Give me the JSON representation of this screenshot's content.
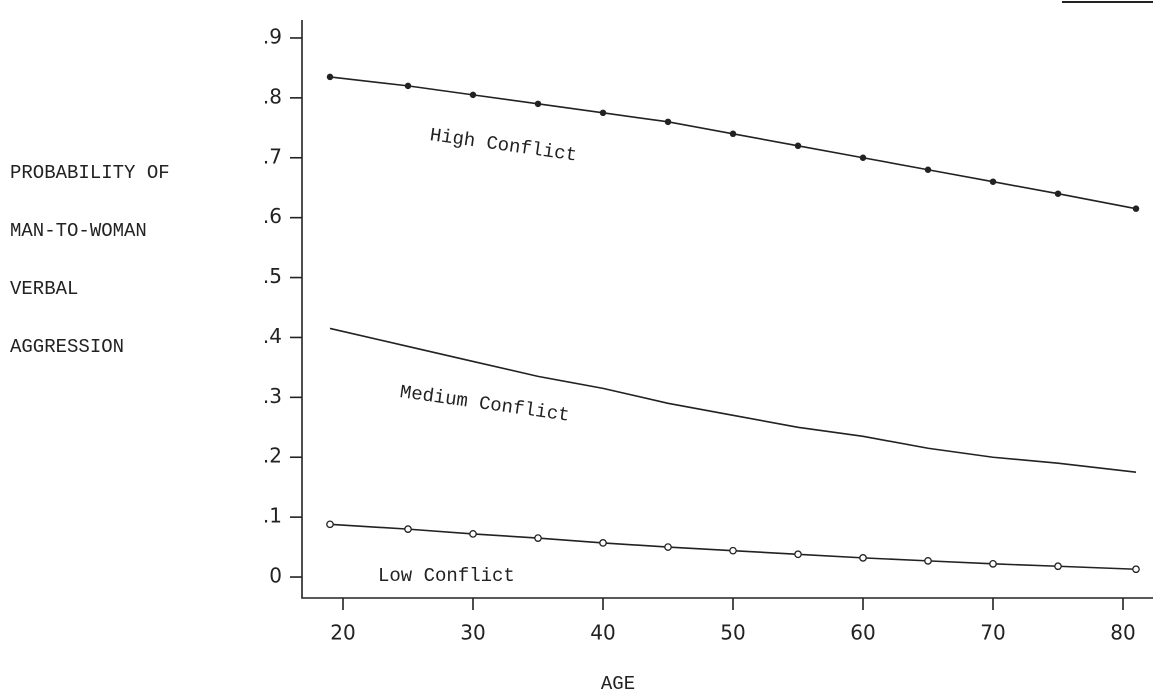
{
  "chart_data": {
    "type": "line",
    "x_label": "AGE",
    "y_label": [
      "PROBABILITY OF",
      "MAN-TO-WOMAN",
      "VERBAL",
      "AGGRESSION"
    ],
    "x": [
      19,
      25,
      30,
      35,
      40,
      45,
      50,
      55,
      60,
      65,
      70,
      75,
      81
    ],
    "series": [
      {
        "name": "High Conflict",
        "color": "#222222",
        "marker": "dot",
        "values": [
          0.835,
          0.82,
          0.805,
          0.79,
          0.775,
          0.76,
          0.74,
          0.72,
          0.7,
          0.68,
          0.66,
          0.64,
          0.615
        ]
      },
      {
        "name": "Medium Conflict",
        "color": "#222222",
        "marker": "none",
        "values": [
          0.415,
          0.385,
          0.36,
          0.335,
          0.315,
          0.29,
          0.27,
          0.25,
          0.235,
          0.215,
          0.2,
          0.19,
          0.175
        ]
      },
      {
        "name": "Low Conflict",
        "color": "#222222",
        "marker": "circle",
        "values": [
          0.088,
          0.08,
          0.072,
          0.065,
          0.057,
          0.05,
          0.044,
          0.038,
          0.032,
          0.027,
          0.022,
          0.018,
          0.013
        ]
      }
    ],
    "xlim": [
      17,
      82
    ],
    "xticks": [
      20,
      30,
      40,
      50,
      60,
      70,
      80
    ],
    "ylim": [
      -0.035,
      0.93
    ],
    "yticks": [
      0,
      {
        "value": 0.1,
        "label": ".1"
      },
      {
        "value": 0.2,
        "label": ".2"
      },
      {
        "value": 0.3,
        "label": ".3"
      },
      {
        "value": 0.4,
        "label": ".4"
      },
      {
        "value": 0.5,
        "label": ".5"
      },
      {
        "value": 0.6,
        "label": ".6"
      },
      {
        "value": 0.7,
        "label": ".7"
      },
      {
        "value": 0.8,
        "label": ".8"
      },
      {
        "value": 0.9,
        "label": ".9"
      }
    ],
    "grid": false
  }
}
